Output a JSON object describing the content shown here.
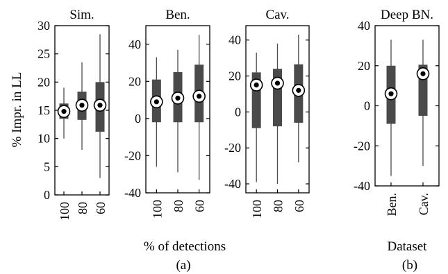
{
  "figure": {
    "ylabel": "% Impr. in LL",
    "xlabel_a": "% of detections",
    "xlabel_b": "Dataset",
    "caption_a": "(a)",
    "caption_b": "(b)"
  },
  "colors": {
    "box": "#4a4a4a",
    "whisker": "#4a4a4a",
    "axis": "#000000",
    "marker_fill": "#ffffff",
    "marker_dot": "#000000"
  },
  "chart_data": [
    {
      "type": "box",
      "title": "Sim.",
      "categories": [
        "100",
        "80",
        "60"
      ],
      "ylim": [
        0,
        30
      ],
      "yticks": [
        0,
        5,
        10,
        15,
        20,
        25,
        30
      ],
      "boxes": [
        {
          "min": 10,
          "q1": 13.5,
          "median": 14.8,
          "q3": 16.2,
          "max": 19
        },
        {
          "min": 8,
          "q1": 13.3,
          "median": 15.9,
          "q3": 18.3,
          "max": 23.5
        },
        {
          "min": 3,
          "q1": 11.2,
          "median": 15.9,
          "q3": 20,
          "max": 28.5
        }
      ]
    },
    {
      "type": "box",
      "title": "Ben.",
      "categories": [
        "100",
        "80",
        "60"
      ],
      "ylim": [
        -40,
        50
      ],
      "yticks": [
        -40,
        -20,
        0,
        20,
        40
      ],
      "boxes": [
        {
          "min": -26,
          "q1": -2,
          "median": 9,
          "q3": 21,
          "max": 33
        },
        {
          "min": -29,
          "q1": -2,
          "median": 11,
          "q3": 25,
          "max": 37
        },
        {
          "min": -33,
          "q1": -2,
          "median": 12,
          "q3": 29,
          "max": 45
        }
      ]
    },
    {
      "type": "box",
      "title": "Cav.",
      "categories": [
        "100",
        "80",
        "60"
      ],
      "ylim": [
        -45,
        48
      ],
      "yticks": [
        -40,
        -20,
        0,
        20,
        40
      ],
      "boxes": [
        {
          "min": -39,
          "q1": -9,
          "median": 15,
          "q3": 22,
          "max": 33
        },
        {
          "min": -40,
          "q1": -8,
          "median": 16,
          "q3": 24,
          "max": 38
        },
        {
          "min": -28,
          "q1": -6,
          "median": 12,
          "q3": 26.5,
          "max": 43
        }
      ]
    },
    {
      "type": "box",
      "title": "Deep BN.",
      "categories": [
        "Ben.",
        "Cav."
      ],
      "ylim": [
        -40,
        40
      ],
      "yticks": [
        -40,
        -20,
        0,
        20,
        40
      ],
      "boxes": [
        {
          "min": -35,
          "q1": -9,
          "median": 6,
          "q3": 20,
          "max": 33
        },
        {
          "min": -30,
          "q1": -5,
          "median": 16,
          "q3": 20.5,
          "max": 33
        }
      ]
    }
  ]
}
